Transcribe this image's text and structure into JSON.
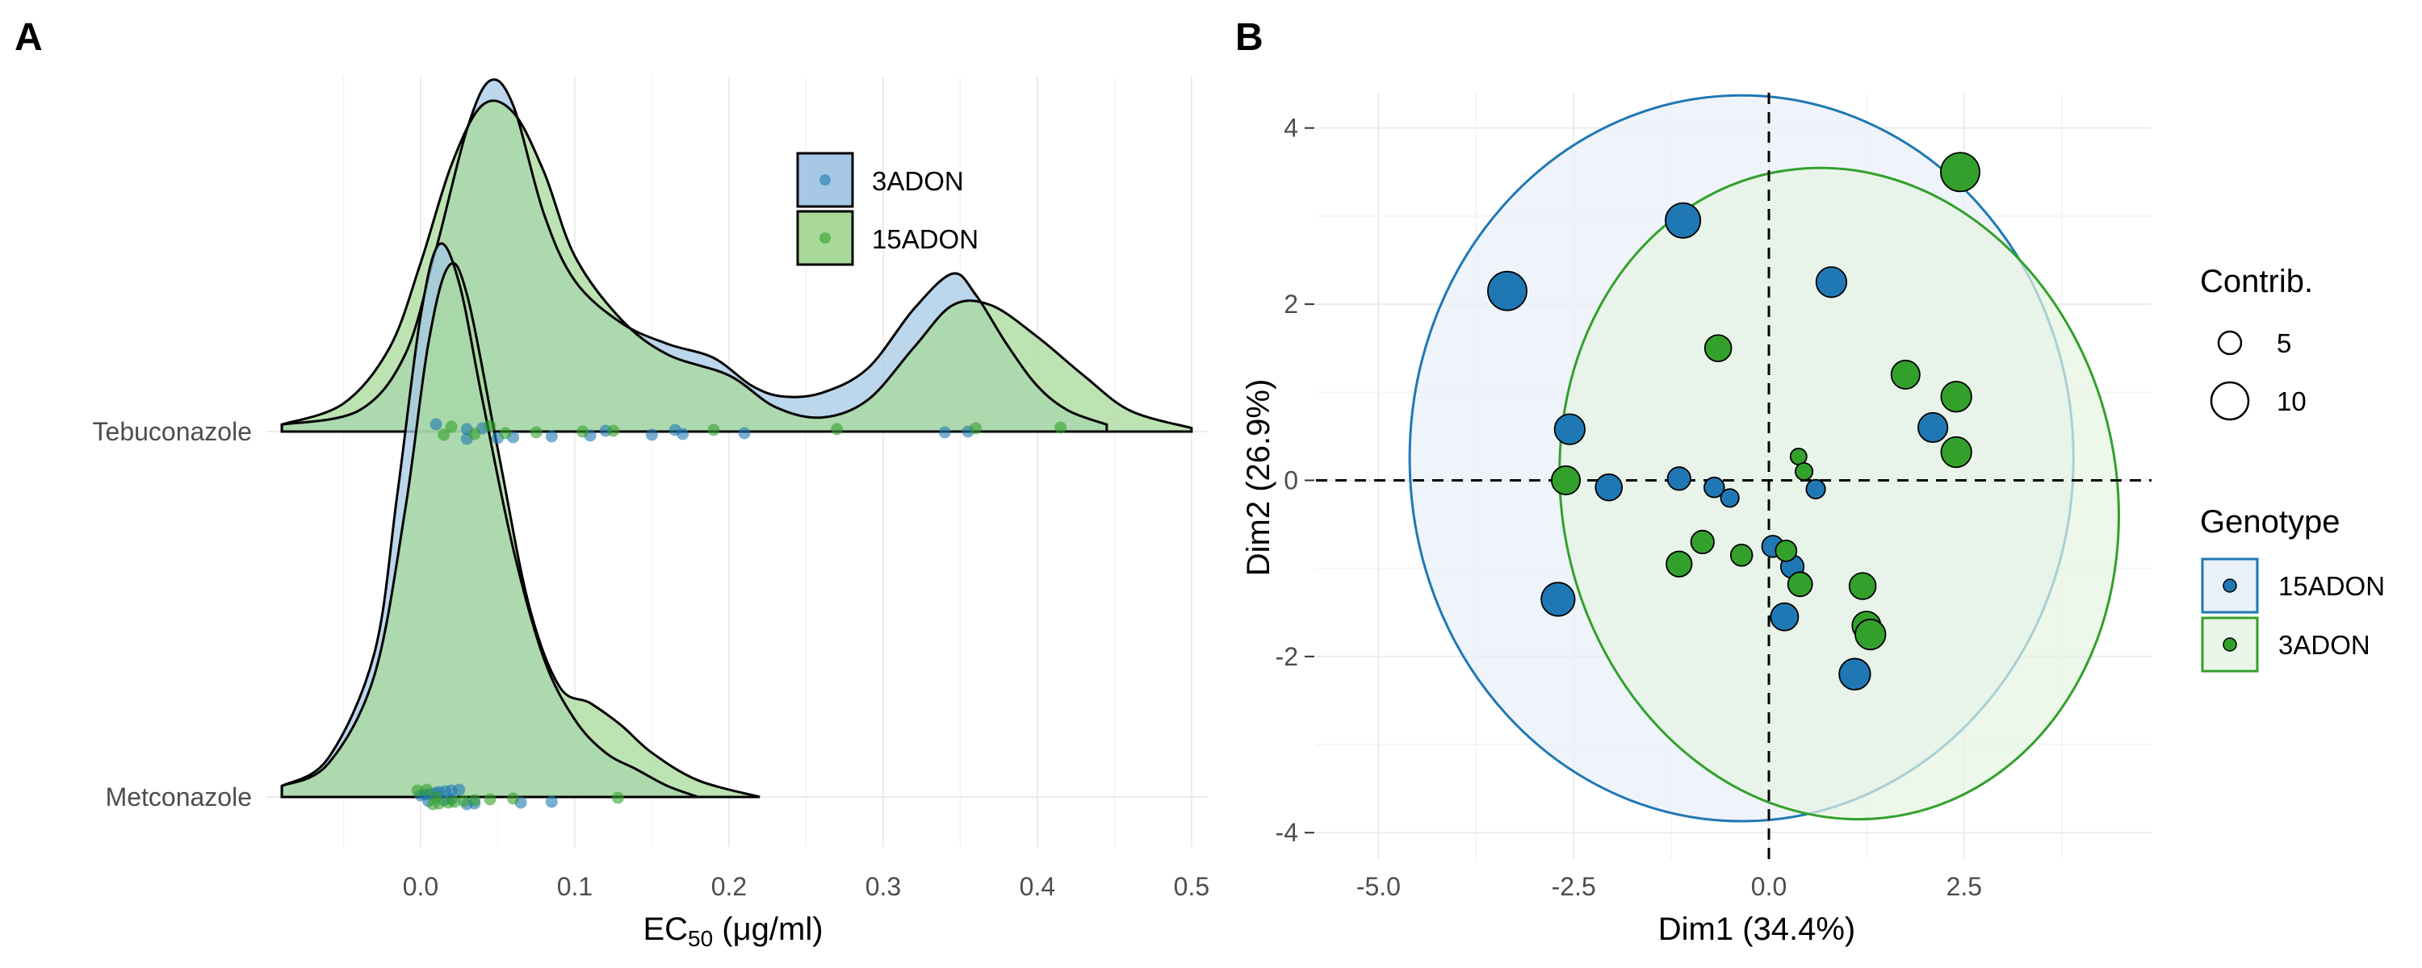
{
  "colors": {
    "blue": "#1f78b4",
    "green": "#33a02c",
    "blue_fill": "#a6c8e6",
    "green_fill": "#a8d99a",
    "overlap_fill": "#7fb3a6",
    "grid": "#ebebeb"
  },
  "panels": {
    "a_label": "A",
    "b_label": "B"
  },
  "chart_data": [
    {
      "type": "area",
      "subtype": "ridgeline-density",
      "panel": "A",
      "xlabel": "EC50 (μg/ml)",
      "xlabel_main": "EC",
      "xlabel_sub": "50",
      "xlabel_rest": " (μg/ml)",
      "xlim": [
        -0.1,
        0.51
      ],
      "x_ticks": [
        "0.0",
        "0.1",
        "0.2",
        "0.3",
        "0.4",
        "0.5"
      ],
      "categories": [
        "Tebuconazole",
        "Metconazole"
      ],
      "legend": {
        "position": "top-right",
        "entries": [
          "3ADON",
          "15ADON"
        ]
      },
      "series": [
        {
          "name": "3ADON",
          "color": "#1f78b4",
          "category": "Tebuconazole",
          "density": [
            [
              -0.09,
              0.02
            ],
            [
              -0.04,
              0.06
            ],
            [
              -0.01,
              0.22
            ],
            [
              0.01,
              0.52
            ],
            [
              0.03,
              0.86
            ],
            [
              0.045,
              1.0
            ],
            [
              0.06,
              0.93
            ],
            [
              0.08,
              0.62
            ],
            [
              0.1,
              0.43
            ],
            [
              0.13,
              0.31
            ],
            [
              0.16,
              0.25
            ],
            [
              0.19,
              0.21
            ],
            [
              0.215,
              0.13
            ],
            [
              0.235,
              0.1
            ],
            [
              0.26,
              0.11
            ],
            [
              0.29,
              0.18
            ],
            [
              0.32,
              0.35
            ],
            [
              0.345,
              0.45
            ],
            [
              0.36,
              0.39
            ],
            [
              0.38,
              0.25
            ],
            [
              0.4,
              0.13
            ],
            [
              0.42,
              0.06
            ],
            [
              0.445,
              0.02
            ]
          ],
          "points": [
            0.01,
            0.03,
            0.05,
            0.06,
            0.085,
            0.11,
            0.15,
            0.17,
            0.21,
            0.34,
            0.355,
            0.12,
            0.165,
            0.03,
            0.04
          ]
        },
        {
          "name": "15ADON",
          "color": "#33a02c",
          "category": "Tebuconazole",
          "density": [
            [
              -0.09,
              0.02
            ],
            [
              -0.05,
              0.08
            ],
            [
              -0.02,
              0.24
            ],
            [
              0.0,
              0.48
            ],
            [
              0.02,
              0.76
            ],
            [
              0.04,
              0.93
            ],
            [
              0.06,
              0.91
            ],
            [
              0.08,
              0.74
            ],
            [
              0.1,
              0.5
            ],
            [
              0.13,
              0.32
            ],
            [
              0.16,
              0.22
            ],
            [
              0.2,
              0.16
            ],
            [
              0.23,
              0.07
            ],
            [
              0.26,
              0.04
            ],
            [
              0.29,
              0.09
            ],
            [
              0.32,
              0.24
            ],
            [
              0.345,
              0.36
            ],
            [
              0.37,
              0.36
            ],
            [
              0.4,
              0.27
            ],
            [
              0.43,
              0.16
            ],
            [
              0.46,
              0.06
            ],
            [
              0.5,
              0.01
            ]
          ],
          "points": [
            0.015,
            0.035,
            0.055,
            0.075,
            0.105,
            0.125,
            0.19,
            0.27,
            0.36,
            0.415,
            0.02,
            0.045
          ]
        },
        {
          "name": "3ADON",
          "color": "#1f78b4",
          "category": "Metconazole",
          "density": [
            [
              -0.09,
              0.02
            ],
            [
              -0.06,
              0.07
            ],
            [
              -0.03,
              0.26
            ],
            [
              -0.015,
              0.55
            ],
            [
              0.0,
              0.87
            ],
            [
              0.012,
              1.0
            ],
            [
              0.025,
              0.93
            ],
            [
              0.04,
              0.72
            ],
            [
              0.06,
              0.45
            ],
            [
              0.08,
              0.25
            ],
            [
              0.1,
              0.14
            ],
            [
              0.12,
              0.08
            ],
            [
              0.14,
              0.05
            ],
            [
              0.16,
              0.02
            ],
            [
              0.18,
              0.0
            ]
          ],
          "points": [
            0.0,
            0.003,
            0.006,
            0.01,
            0.012,
            0.016,
            0.02,
            0.025,
            0.03,
            0.035,
            0.065,
            0.085,
            0.005,
            0.015,
            0.02
          ]
        },
        {
          "name": "15ADON",
          "color": "#33a02c",
          "category": "Metconazole",
          "density": [
            [
              -0.09,
              0.02
            ],
            [
              -0.06,
              0.06
            ],
            [
              -0.03,
              0.22
            ],
            [
              -0.01,
              0.52
            ],
            [
              0.005,
              0.82
            ],
            [
              0.018,
              0.96
            ],
            [
              0.03,
              0.91
            ],
            [
              0.05,
              0.63
            ],
            [
              0.07,
              0.35
            ],
            [
              0.09,
              0.2
            ],
            [
              0.11,
              0.17
            ],
            [
              0.13,
              0.13
            ],
            [
              0.15,
              0.08
            ],
            [
              0.18,
              0.03
            ],
            [
              0.22,
              0.0
            ]
          ],
          "points": [
            -0.002,
            0.004,
            0.008,
            0.012,
            0.018,
            0.022,
            0.028,
            0.035,
            0.045,
            0.06,
            0.128,
            0.01
          ]
        }
      ]
    },
    {
      "type": "scatter",
      "subtype": "pca-biplot",
      "panel": "B",
      "xlabel": "Dim1 (34.4%)",
      "ylabel": "Dim2 (26.9%)",
      "xlim": [
        -5.8,
        4.9
      ],
      "ylim": [
        -4.3,
        4.4
      ],
      "x_ticks": [
        "-5.0",
        "-2.5",
        "0.0",
        "2.5"
      ],
      "y_ticks": [
        "-4",
        "-2",
        "0",
        "2",
        "4"
      ],
      "legend": {
        "position": "right",
        "size_title": "Contrib.",
        "size_entries": [
          "5",
          "10"
        ],
        "color_title": "Genotype",
        "color_entries": [
          "15ADON",
          "3ADON"
        ]
      },
      "ellipses": [
        {
          "name": "15ADON",
          "center": [
            -0.35,
            0.25
          ],
          "rx": 4.25,
          "ry": 4.12,
          "angle": 0
        },
        {
          "name": "3ADON",
          "center": [
            0.9,
            -0.15
          ],
          "rx": 3.55,
          "ry": 3.72,
          "angle": -12
        }
      ],
      "series": [
        {
          "name": "15ADON",
          "color": "#1f78b4",
          "points": [
            {
              "x": -3.35,
              "y": 2.15,
              "contrib": 12
            },
            {
              "x": -1.1,
              "y": 2.95,
              "contrib": 9
            },
            {
              "x": 0.8,
              "y": 2.25,
              "contrib": 6
            },
            {
              "x": -2.55,
              "y": 0.58,
              "contrib": 6
            },
            {
              "x": 2.1,
              "y": 0.6,
              "contrib": 5.5
            },
            {
              "x": -2.7,
              "y": -1.35,
              "contrib": 8
            },
            {
              "x": 1.1,
              "y": -2.2,
              "contrib": 6.5
            },
            {
              "x": 0.2,
              "y": -1.55,
              "contrib": 4.5
            },
            {
              "x": -2.05,
              "y": -0.08,
              "contrib": 4
            },
            {
              "x": -1.15,
              "y": 0.02,
              "contrib": 2.5
            },
            {
              "x": -0.7,
              "y": -0.08,
              "contrib": 1.5
            },
            {
              "x": -0.5,
              "y": -0.2,
              "contrib": 1
            },
            {
              "x": 0.6,
              "y": -0.1,
              "contrib": 1.2
            },
            {
              "x": 0.05,
              "y": -0.75,
              "contrib": 2
            },
            {
              "x": 0.3,
              "y": -0.98,
              "contrib": 2.5
            }
          ]
        },
        {
          "name": "3ADON",
          "color": "#33a02c",
          "points": [
            {
              "x": 2.45,
              "y": 3.5,
              "contrib": 12
            },
            {
              "x": -0.65,
              "y": 1.5,
              "contrib": 4
            },
            {
              "x": 1.75,
              "y": 1.2,
              "contrib": 5
            },
            {
              "x": 2.4,
              "y": 0.95,
              "contrib": 6
            },
            {
              "x": 2.4,
              "y": 0.32,
              "contrib": 6
            },
            {
              "x": -2.6,
              "y": 0.0,
              "contrib": 5
            },
            {
              "x": 0.38,
              "y": 0.27,
              "contrib": 0.6
            },
            {
              "x": 0.45,
              "y": 0.1,
              "contrib": 0.8
            },
            {
              "x": -0.85,
              "y": -0.7,
              "contrib": 2.5
            },
            {
              "x": -1.15,
              "y": -0.95,
              "contrib": 3.5
            },
            {
              "x": -0.35,
              "y": -0.85,
              "contrib": 2
            },
            {
              "x": 0.22,
              "y": -0.8,
              "contrib": 1.8
            },
            {
              "x": 0.4,
              "y": -1.18,
              "contrib": 3
            },
            {
              "x": 1.2,
              "y": -1.2,
              "contrib": 4
            },
            {
              "x": 1.25,
              "y": -1.65,
              "contrib": 5
            },
            {
              "x": 1.3,
              "y": -1.75,
              "contrib": 6
            }
          ]
        }
      ]
    }
  ]
}
